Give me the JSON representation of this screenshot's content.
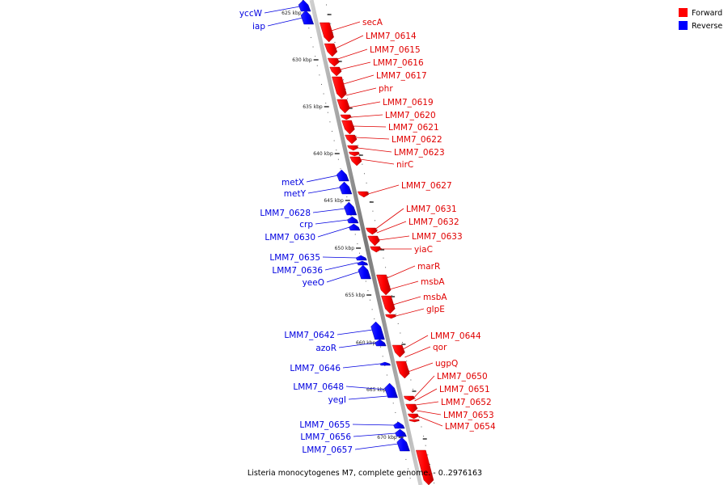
{
  "caption": "Listeria monocytogenes M7, complete genome. - 0..2976163",
  "legend": {
    "forward": "Forward",
    "reverse": "Reverse"
  },
  "colors": {
    "forward": "#ff0000",
    "reverse": "#0000ff",
    "backbone": "#888888"
  },
  "ticks": [
    "625 kbp",
    "630 kbp",
    "635 kbp",
    "640 kbp",
    "645 kbp",
    "650 kbp",
    "655 kbp",
    "660 kbp",
    "665 kbp",
    "670 kbp"
  ],
  "forward_genes": [
    "secA",
    "LMM7_0614",
    "LMM7_0615",
    "LMM7_0616",
    "LMM7_0617",
    "phr",
    "LMM7_0619",
    "LMM7_0620",
    "LMM7_0621",
    "LMM7_0622",
    "LMM7_0623",
    "nirC",
    "LMM7_0627",
    "LMM7_0631",
    "LMM7_0632",
    "LMM7_0633",
    "yiaC",
    "marR",
    "msbA",
    "msbA",
    "glpE",
    "LMM7_0644",
    "qor",
    "ugpQ",
    "LMM7_0650",
    "LMM7_0651",
    "LMM7_0652",
    "LMM7_0653",
    "LMM7_0654"
  ],
  "reverse_genes": [
    "yccW",
    "iap",
    "metX",
    "metY",
    "LMM7_0628",
    "crp",
    "LMM7_0630",
    "LMM7_0635",
    "LMM7_0636",
    "yeeO",
    "LMM7_0642",
    "azoR",
    "LMM7_0646",
    "LMM7_0648",
    "yegI",
    "LMM7_0655",
    "LMM7_0656",
    "LMM7_0657"
  ]
}
